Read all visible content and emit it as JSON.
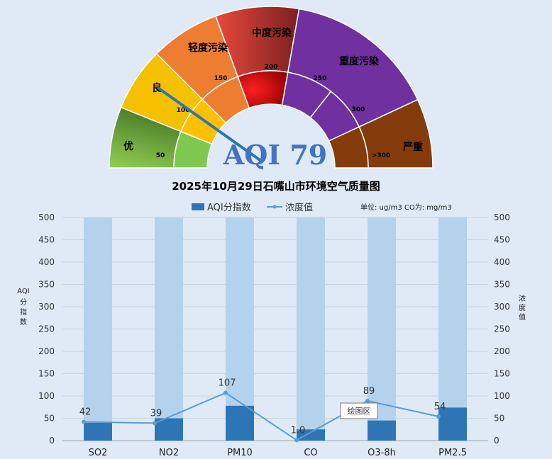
{
  "gauge": {
    "outer_bands": [
      {
        "label": "优",
        "color": "#6ab04c"
      },
      {
        "label": "良",
        "color": "#f5c000"
      },
      {
        "label": "轻度污染",
        "color": "#ed7d31"
      },
      {
        "label": "中度污染",
        "color": "#c0392b"
      },
      {
        "label": "重度污染",
        "color": "#7030a0"
      },
      {
        "label": "严重",
        "color": "#843c0c"
      }
    ],
    "inner_ticks": [
      {
        "label": "50",
        "color": "#7ec850"
      },
      {
        "label": "100",
        "color": "#ffc000"
      },
      {
        "label": "150",
        "color": "#ed7d31"
      },
      {
        "label": "200",
        "color": "#e00000"
      },
      {
        "label": "250",
        "color": "#7030a0"
      },
      {
        "label": "300",
        "color": "#7030a0"
      },
      {
        "label": ">300",
        "color": "#843c0c"
      }
    ],
    "aqi_text": "AQI 79",
    "aqi_value": 79,
    "needle_color": "#2e75b6"
  },
  "chart_data": {
    "type": "bar",
    "title": "2025年10月29日石嘴山市环境空气质量图",
    "unit_note": "单位: ug/m3  CO为: mg/m3",
    "categories": [
      "SO2",
      "NO2",
      "PM10",
      "CO",
      "O3-8h",
      "PM2.5"
    ],
    "series": [
      {
        "name": "AQI分指数",
        "type": "bar",
        "axis": "left",
        "color": "#2e75b6",
        "values": [
          40,
          50,
          78,
          25,
          45,
          74
        ]
      },
      {
        "name": "浓度值",
        "type": "line",
        "axis": "right",
        "color": "#5b9bd5",
        "values": [
          42,
          39,
          107,
          1.0,
          89,
          54
        ],
        "value_labels": [
          "42",
          "39",
          "107",
          "1.0",
          "89",
          "54"
        ]
      }
    ],
    "background_bar_value": 500,
    "background_bar_color": "#b4d2eb",
    "ylabel_left": "AQI分指数",
    "ylabel_right": "浓度值",
    "ylim_left": [
      0,
      500
    ],
    "ylim_right": [
      0,
      500
    ],
    "yticks": [
      0,
      50,
      100,
      150,
      200,
      250,
      300,
      350,
      400,
      450,
      500
    ],
    "grid": true,
    "legend": "top"
  },
  "tooltip": {
    "label": "绘图区"
  }
}
